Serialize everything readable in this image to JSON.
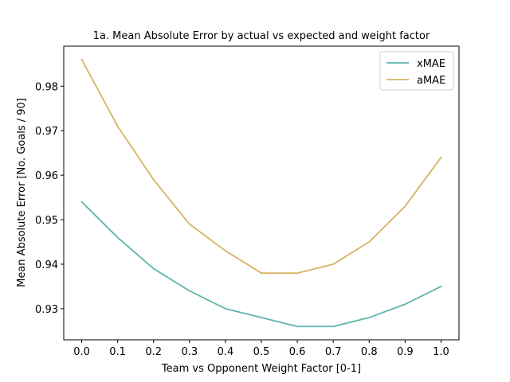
{
  "chart_data": {
    "type": "line",
    "title": "1a. Mean Absolute Error by actual vs expected and weight factor",
    "xlabel": "Team vs Opponent Weight Factor [0-1]",
    "ylabel": "Mean Absolute Error [No. Goals / 90]",
    "x": [
      0.0,
      0.1,
      0.2,
      0.3,
      0.4,
      0.5,
      0.6,
      0.7,
      0.8,
      0.9,
      1.0
    ],
    "xticks": [
      "0.0",
      "0.1",
      "0.2",
      "0.3",
      "0.4",
      "0.5",
      "0.6",
      "0.7",
      "0.8",
      "0.9",
      "1.0"
    ],
    "xlim": [
      -0.05,
      1.05
    ],
    "yticks": [
      "0.93",
      "0.94",
      "0.95",
      "0.96",
      "0.97",
      "0.98"
    ],
    "ylim": [
      0.923,
      0.989
    ],
    "grid": false,
    "legend": "top-right",
    "series": [
      {
        "name": "xMAE",
        "color": "#5bb5ae",
        "values": [
          0.954,
          0.946,
          0.939,
          0.934,
          0.93,
          0.928,
          0.926,
          0.926,
          0.928,
          0.931,
          0.935
        ]
      },
      {
        "name": "aMAE",
        "color": "#d6b264",
        "values": [
          0.986,
          0.971,
          0.959,
          0.949,
          0.943,
          0.938,
          0.938,
          0.94,
          0.945,
          0.953,
          0.964
        ]
      }
    ]
  }
}
